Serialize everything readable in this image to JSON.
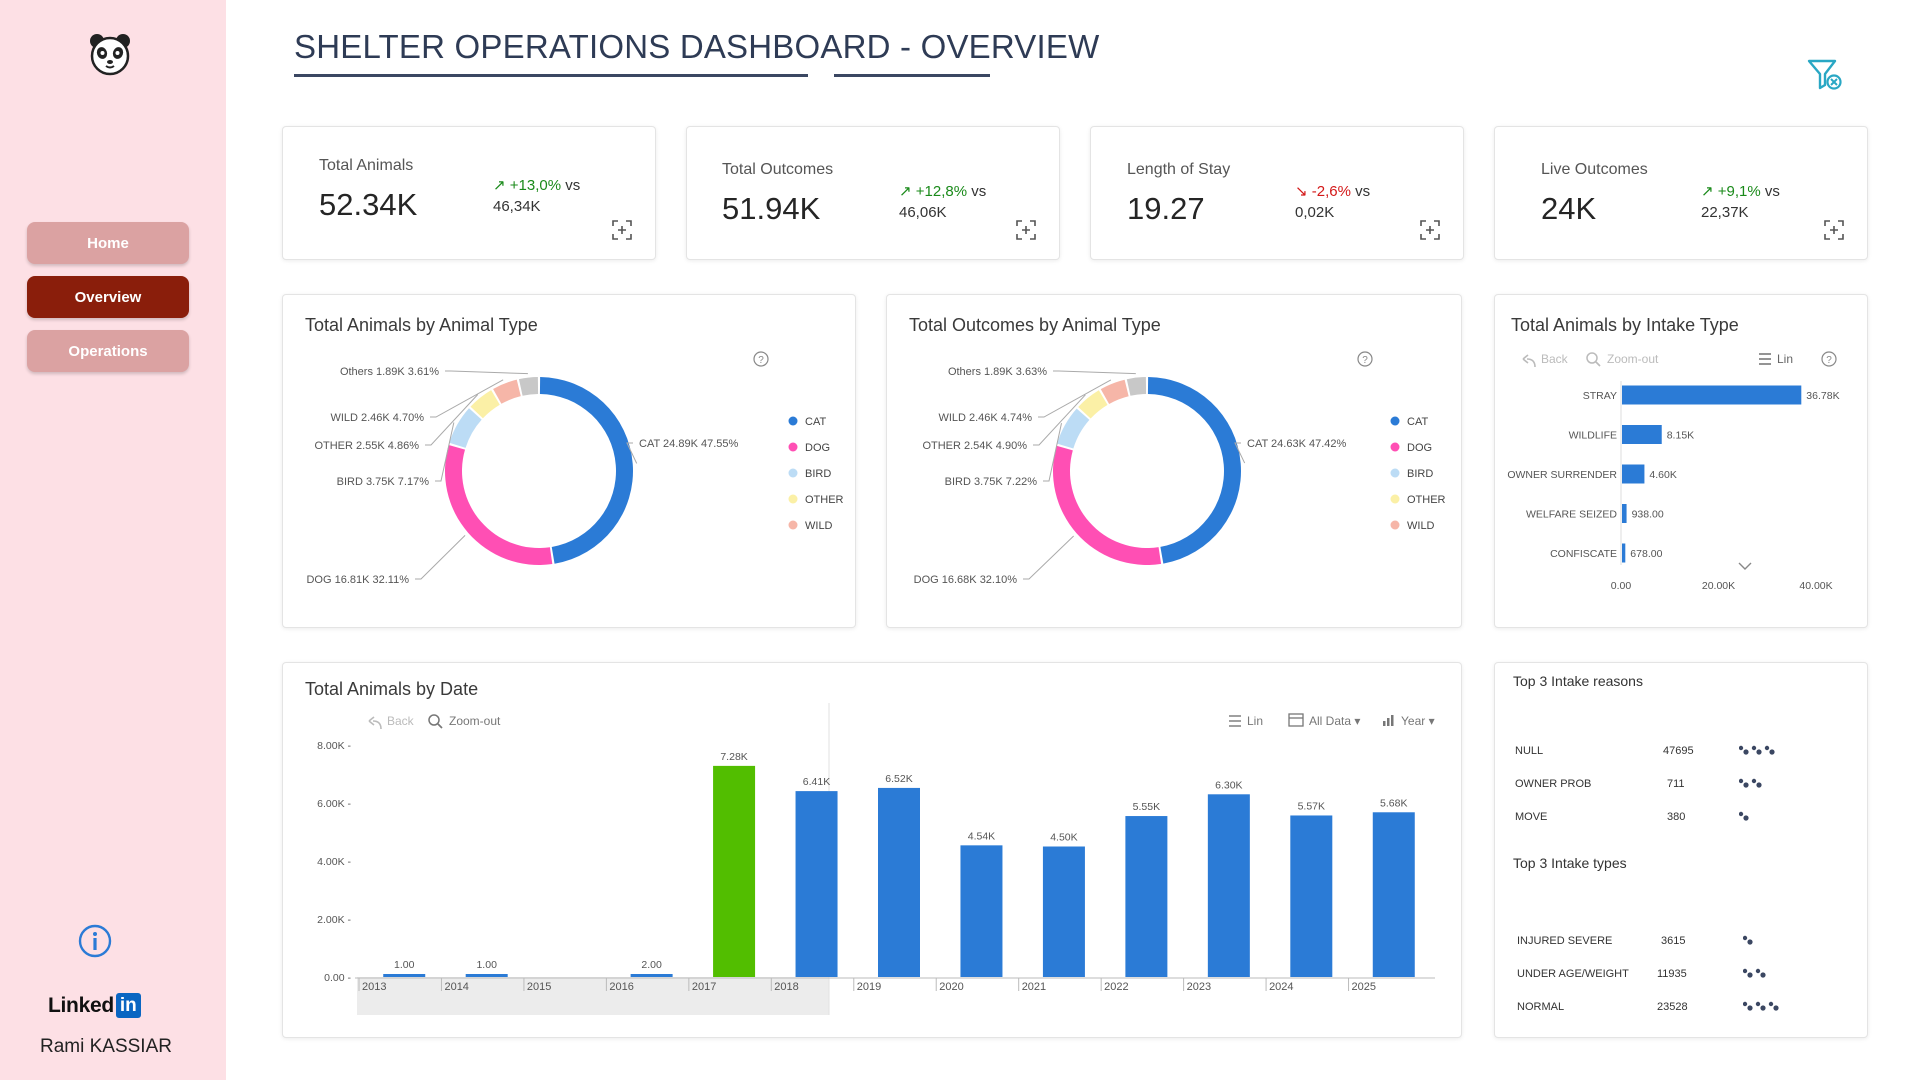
{
  "sidebar": {
    "nav": [
      {
        "label": "Home"
      },
      {
        "label": "Overview"
      },
      {
        "label": "Operations"
      }
    ],
    "linkedin_text": "Linked",
    "linkedin_badge": "in",
    "author": "Rami KASSIAR"
  },
  "header": {
    "title": "SHELTER OPERATIONS DASHBOARD - OVERVIEW"
  },
  "kpis": [
    {
      "label": "Total Animals",
      "value": "52.34K",
      "delta": "+13,0%",
      "vs": "vs",
      "prev": "46,34K",
      "trend": "up"
    },
    {
      "label": "Total Outcomes",
      "value": "51.94K",
      "delta": "+12,8%",
      "vs": "vs",
      "prev": "46,06K",
      "trend": "up"
    },
    {
      "label": "Length of Stay",
      "value": "19.27",
      "delta": "-2,6%",
      "vs": "vs",
      "prev": "0,02K",
      "trend": "down"
    },
    {
      "label": "Live Outcomes",
      "value": "24K",
      "delta": "+9,1%",
      "vs": "vs",
      "prev": "22,37K",
      "trend": "up"
    }
  ],
  "colors": {
    "cat": "#2b7bd6",
    "dog": "#ff4fb4",
    "bird": "#bcdcf5",
    "other": "#fbf0a6",
    "wild": "#f6b6a8",
    "others": "#c8c8c8",
    "bar": "#2b7bd6",
    "bar_highlight": "#52be00",
    "up": "#1a8a1a",
    "down": "#d31818"
  },
  "chart_data": [
    {
      "type": "pie",
      "title": "Total Animals by Animal Type",
      "slices": [
        {
          "name": "CAT",
          "value": 24.89,
          "label": "CAT 24.89K 47.55%"
        },
        {
          "name": "DOG",
          "value": 16.81,
          "label": "DOG 16.81K 32.11%"
        },
        {
          "name": "BIRD",
          "value": 3.75,
          "label": "BIRD 3.75K 7.17%"
        },
        {
          "name": "OTHER",
          "value": 2.55,
          "label": "OTHER 2.55K 4.86%"
        },
        {
          "name": "WILD",
          "value": 2.46,
          "label": "WILD 2.46K 4.70%"
        },
        {
          "name": "Others",
          "value": 1.89,
          "label": "Others 1.89K 3.61%"
        }
      ],
      "legend": [
        "CAT",
        "DOG",
        "BIRD",
        "OTHER",
        "WILD"
      ],
      "legend_position": "right"
    },
    {
      "type": "pie",
      "title": "Total Outcomes by Animal Type",
      "slices": [
        {
          "name": "CAT",
          "value": 24.63,
          "label": "CAT 24.63K 47.42%"
        },
        {
          "name": "DOG",
          "value": 16.68,
          "label": "DOG 16.68K 32.10%"
        },
        {
          "name": "BIRD",
          "value": 3.75,
          "label": "BIRD 3.75K 7.22%"
        },
        {
          "name": "OTHER",
          "value": 2.54,
          "label": "OTHER 2.54K 4.90%"
        },
        {
          "name": "WILD",
          "value": 2.46,
          "label": "WILD 2.46K 4.74%"
        },
        {
          "name": "Others",
          "value": 1.89,
          "label": "Others 1.89K 3.63%"
        }
      ],
      "legend": [
        "CAT",
        "DOG",
        "BIRD",
        "OTHER",
        "WILD"
      ],
      "legend_position": "right"
    },
    {
      "type": "bar",
      "orientation": "horizontal",
      "title": "Total Animals by Intake Type",
      "categories": [
        "STRAY",
        "WILDLIFE",
        "OWNER SURRENDER",
        "WELFARE SEIZED",
        "CONFISCATE"
      ],
      "values": [
        36780,
        8150,
        4600,
        938,
        678
      ],
      "value_labels": [
        "36.78K",
        "8.15K",
        "4.60K",
        "938.00",
        "678.00"
      ],
      "xticks": [
        "0.00",
        "20.00K",
        "40.00K"
      ],
      "xlim": [
        0,
        40000
      ],
      "toolbar": {
        "back": "Back",
        "zoom": "Zoom-out",
        "scale": "Lin"
      }
    },
    {
      "type": "bar",
      "title": "Total Animals by Date",
      "categories": [
        "2013",
        "2014",
        "2015",
        "2016",
        "2017",
        "2018",
        "2019",
        "2020",
        "2021",
        "2022",
        "2023",
        "2024",
        "2025"
      ],
      "values": [
        1,
        1,
        0,
        2,
        7280,
        6410,
        6520,
        4540,
        4500,
        5550,
        6300,
        5570,
        5680
      ],
      "value_labels": [
        "1.00",
        "1.00",
        "",
        "2.00",
        "7.28K",
        "6.41K",
        "6.52K",
        "4.54K",
        "4.50K",
        "5.55K",
        "6.30K",
        "5.57K",
        "5.68K"
      ],
      "highlight": "2017",
      "yticks": [
        "0.00",
        "2.00K",
        "4.00K",
        "6.00K",
        "8.00K"
      ],
      "ylim": [
        0,
        8000
      ],
      "toolbar": {
        "back": "Back",
        "zoom": "Zoom-out",
        "scale": "Lin",
        "range": "All Data",
        "period": "Year"
      }
    }
  ],
  "top_reasons": {
    "title": "Top 3 Intake reasons",
    "rows": [
      {
        "name": "NULL",
        "value": "47695",
        "marks": 3
      },
      {
        "name": "OWNER PROB",
        "value": "711",
        "marks": 2
      },
      {
        "name": "MOVE",
        "value": "380",
        "marks": 1
      }
    ]
  },
  "top_types": {
    "title": "Top 3 Intake types",
    "rows": [
      {
        "name": "INJURED  SEVERE",
        "value": "3615",
        "marks": 1
      },
      {
        "name": "UNDER AGE/WEIGHT",
        "value": "11935",
        "marks": 2
      },
      {
        "name": "NORMAL",
        "value": "23528",
        "marks": 3
      }
    ]
  }
}
